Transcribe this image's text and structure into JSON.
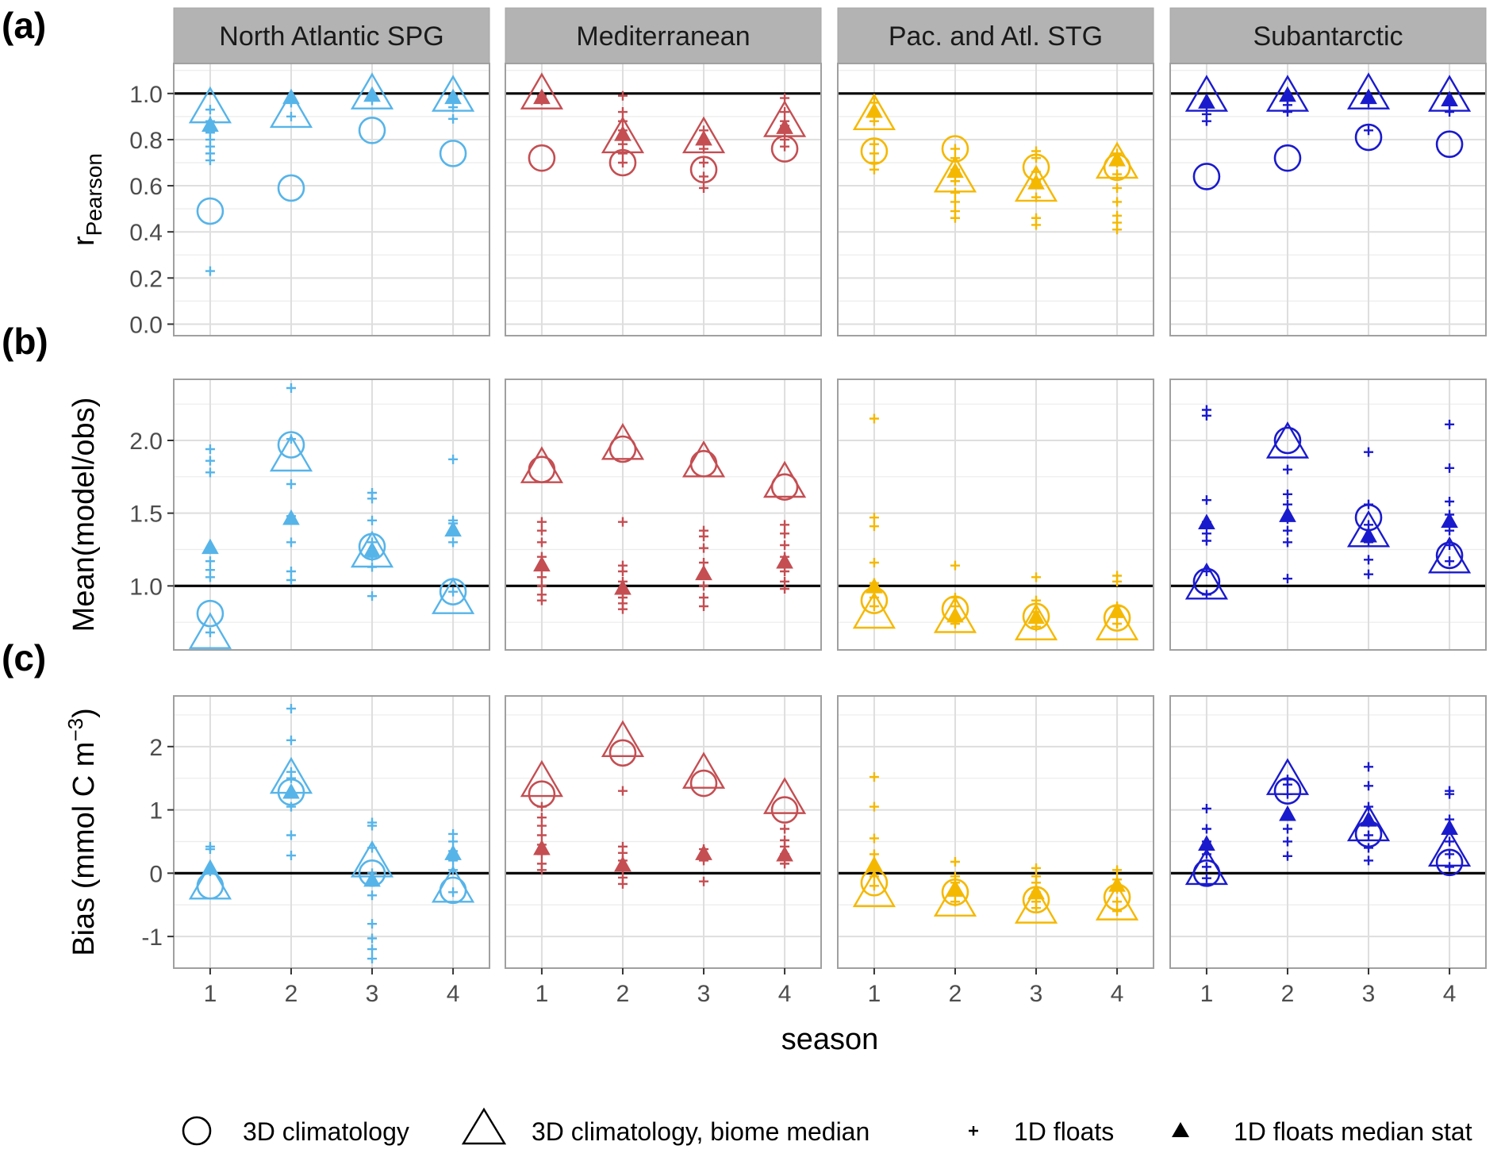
{
  "chart_data": {
    "type": "scatter",
    "xlabel": "season",
    "x": [
      1,
      2,
      3,
      4
    ],
    "xticks": [
      "1",
      "2",
      "3",
      "4"
    ],
    "panels": [
      {
        "id": "a",
        "tag": "(a)",
        "ylabel": "r",
        "ylabel_sub": "Pearson",
        "ylim": [
          -0.05,
          1.13
        ],
        "yticks": [
          0,
          0.2,
          0.4,
          0.6,
          0.8,
          1.0
        ],
        "ytick_labels": [
          "0.0",
          "0.2",
          "0.4",
          "0.6",
          "0.8",
          "1.0"
        ],
        "hline": 1.0
      },
      {
        "id": "b",
        "tag": "(b)",
        "ylabel": "Mean(model/obs)",
        "ylim": [
          0.56,
          2.42
        ],
        "yticks": [
          1.0,
          1.5,
          2.0
        ],
        "ytick_labels": [
          "1.0",
          "1.5",
          "2.0"
        ],
        "hline": 1.0
      },
      {
        "id": "c",
        "tag": "(c)",
        "ylabel": "Bias (mmol C m",
        "ylabel_sup": "−3",
        "ylabel_end": ")",
        "ylim": [
          -1.5,
          2.8
        ],
        "yticks": [
          -1,
          0,
          1,
          2
        ],
        "ytick_labels": [
          "-1",
          "0",
          "1",
          "2"
        ],
        "hline": 0
      }
    ],
    "biomes": [
      {
        "name": "North Atlantic SPG",
        "color": "#56b4e9",
        "a": {
          "climatology": [
            0.49,
            0.59,
            0.84,
            0.74
          ],
          "biome_median": [
            0.93,
            0.91,
            0.99,
            0.98
          ],
          "float_median": [
            0.86,
            0.98,
            0.99,
            0.98
          ],
          "floats": [
            [
              0.23,
              0.71,
              0.74,
              0.77,
              0.8,
              0.83,
              0.88,
              0.93
            ],
            [
              0.9,
              0.96,
              0.98
            ],
            [
              0.97,
              0.99
            ],
            [
              0.89,
              0.94,
              0.99
            ]
          ]
        },
        "b": {
          "climatology": [
            0.81,
            1.97,
            1.27,
            0.96
          ],
          "biome_median": [
            0.66,
            1.88,
            1.22,
            0.9
          ],
          "float_median": [
            1.26,
            1.46,
            1.24,
            1.38
          ],
          "floats": [
            [
              0.68,
              1.06,
              1.11,
              1.17,
              1.78,
              1.86,
              1.94
            ],
            [
              1.04,
              1.1,
              1.3,
              1.48,
              1.7,
              2.01,
              2.36
            ],
            [
              0.93,
              1.13,
              1.2,
              1.3,
              1.45,
              1.6,
              1.64
            ],
            [
              0.96,
              1.3,
              1.38,
              1.43,
              1.45,
              1.87
            ]
          ]
        },
        "c": {
          "climatology": [
            -0.2,
            1.28,
            0.0,
            -0.27
          ],
          "biome_median": [
            -0.2,
            1.47,
            0.15,
            -0.25
          ],
          "float_median": [
            0.07,
            1.27,
            -0.12,
            0.3
          ],
          "floats": [
            [
              0.03,
              0.38,
              0.42
            ],
            [
              0.28,
              0.6,
              1.05,
              1.5,
              1.6,
              2.1,
              2.6
            ],
            [
              -1.35,
              -1.2,
              -1.03,
              -0.8,
              -0.35,
              0.0,
              0.4,
              0.75,
              0.8
            ],
            [
              -0.3,
              0.05,
              0.2,
              0.35,
              0.5,
              0.62
            ]
          ]
        }
      },
      {
        "name": "Mediterranean",
        "color": "#c44e52",
        "a": {
          "climatology": [
            0.72,
            0.7,
            0.67,
            0.76
          ],
          "biome_median": [
            0.99,
            0.8,
            0.8,
            0.87
          ],
          "float_median": [
            0.98,
            0.82,
            0.8,
            0.85
          ],
          "floats": [
            [
              0.97,
              0.99
            ],
            [
              0.7,
              0.74,
              0.78,
              0.84,
              0.88,
              0.92,
              0.99
            ],
            [
              0.59,
              0.64,
              0.7,
              0.76,
              0.8,
              0.84
            ],
            [
              0.77,
              0.8,
              0.83,
              0.86,
              0.88,
              0.92,
              0.98
            ]
          ]
        },
        "b": {
          "climatology": [
            1.8,
            1.94,
            1.84,
            1.68
          ],
          "biome_median": [
            1.8,
            1.96,
            1.84,
            1.7
          ],
          "float_median": [
            1.14,
            0.98,
            1.08,
            1.16
          ],
          "floats": [
            [
              0.9,
              0.94,
              1.0,
              1.06,
              1.12,
              1.2,
              1.3,
              1.38,
              1.44
            ],
            [
              0.84,
              0.88,
              0.92,
              0.96,
              1.03,
              1.1,
              1.14,
              1.44
            ],
            [
              0.86,
              0.92,
              1.0,
              1.08,
              1.16,
              1.26,
              1.34,
              1.38
            ],
            [
              0.98,
              1.03,
              1.1,
              1.2,
              1.28,
              1.36,
              1.42
            ]
          ]
        },
        "c": {
          "climatology": [
            1.25,
            1.9,
            1.42,
            1.0
          ],
          "biome_median": [
            1.42,
            2.05,
            1.55,
            1.15
          ],
          "float_median": [
            0.38,
            0.12,
            0.3,
            0.28
          ],
          "floats": [
            [
              0.05,
              0.15,
              0.3,
              0.45,
              0.6,
              0.75,
              0.88,
              1.05
            ],
            [
              -0.17,
              -0.07,
              0.05,
              0.2,
              0.32,
              0.42,
              1.3
            ],
            [
              -0.13,
              0.2,
              0.25,
              0.38
            ],
            [
              0.15,
              0.3,
              0.42,
              0.52,
              0.7
            ]
          ]
        }
      },
      {
        "name": "Pac. and Atl. STG",
        "color": "#f5b800",
        "a": {
          "climatology": [
            0.75,
            0.76,
            0.68,
            0.68
          ],
          "biome_median": [
            0.9,
            0.63,
            0.59,
            0.69
          ],
          "float_median": [
            0.92,
            0.66,
            0.61,
            0.71
          ],
          "floats": [
            [
              0.67,
              0.7,
              0.74,
              0.78,
              0.88,
              0.92,
              0.96
            ],
            [
              0.46,
              0.49,
              0.53,
              0.57,
              0.62,
              0.67,
              0.72,
              0.76
            ],
            [
              0.43,
              0.46,
              0.55,
              0.62,
              0.66,
              0.72,
              0.75
            ],
            [
              0.41,
              0.44,
              0.47,
              0.53,
              0.59,
              0.65,
              0.7,
              0.74
            ]
          ]
        },
        "b": {
          "climatology": [
            0.9,
            0.84,
            0.79,
            0.78
          ],
          "biome_median": [
            0.8,
            0.77,
            0.72,
            0.72
          ],
          "float_median": [
            0.99,
            0.79,
            0.78,
            0.82
          ],
          "floats": [
            [
              0.86,
              0.92,
              0.98,
              1.02,
              1.16,
              1.41,
              1.47,
              2.15
            ],
            [
              0.74,
              0.78,
              0.86,
              0.92,
              1.14
            ],
            [
              0.72,
              0.76,
              0.82,
              0.9,
              1.06
            ],
            [
              0.74,
              0.8,
              0.86,
              1.03,
              1.07
            ]
          ]
        },
        "c": {
          "climatology": [
            -0.15,
            -0.3,
            -0.42,
            -0.38
          ],
          "biome_median": [
            -0.32,
            -0.47,
            -0.58,
            -0.53
          ],
          "float_median": [
            0.12,
            -0.28,
            -0.32,
            -0.2
          ],
          "floats": [
            [
              -0.2,
              -0.05,
              0.1,
              0.3,
              0.55,
              1.05,
              1.52
            ],
            [
              -0.45,
              -0.3,
              -0.15,
              -0.05,
              0.18
            ],
            [
              -0.55,
              -0.45,
              -0.3,
              -0.15,
              -0.05,
              0.08
            ],
            [
              -0.6,
              -0.45,
              -0.25,
              -0.1,
              0.05
            ]
          ]
        }
      },
      {
        "name": "Subantarctic",
        "color": "#1a1acd",
        "a": {
          "climatology": [
            0.64,
            0.72,
            0.81,
            0.78
          ],
          "biome_median": [
            0.98,
            0.98,
            0.99,
            0.98
          ],
          "float_median": [
            0.96,
            0.99,
            0.98,
            0.97
          ],
          "floats": [
            [
              0.88,
              0.91,
              0.95
            ],
            [
              0.92,
              0.95,
              0.97
            ],
            [
              0.84,
              0.96
            ],
            [
              0.92,
              0.95
            ]
          ]
        },
        "b": {
          "climatology": [
            1.03,
            2.0,
            1.47,
            1.21
          ],
          "biome_median": [
            1.0,
            1.97,
            1.36,
            1.18
          ],
          "float_median": [
            1.43,
            1.48,
            1.34,
            1.44
          ],
          "floats": [
            [
              0.94,
              1.1,
              1.31,
              1.36,
              1.44,
              1.59,
              2.17,
              2.21
            ],
            [
              1.05,
              1.3,
              1.38,
              1.46,
              1.56,
              1.63,
              1.8
            ],
            [
              1.08,
              1.18,
              1.3,
              1.42,
              1.56,
              1.92
            ],
            [
              1.17,
              1.28,
              1.38,
              1.49,
              1.58,
              1.81,
              2.11
            ]
          ]
        },
        "c": {
          "climatology": [
            0.0,
            1.3,
            0.62,
            0.17
          ],
          "biome_median": [
            0.03,
            1.45,
            0.72,
            0.32
          ],
          "float_median": [
            0.45,
            0.92,
            0.83,
            0.7
          ],
          "floats": [
            [
              -0.08,
              0.1,
              0.3,
              0.5,
              0.7,
              1.02
            ],
            [
              0.27,
              0.5,
              0.7,
              0.9,
              1.25,
              1.4,
              1.48
            ],
            [
              0.2,
              0.4,
              0.6,
              0.8,
              1.05,
              1.38,
              1.68
            ],
            [
              0.1,
              0.3,
              0.5,
              0.7,
              0.85,
              1.25,
              1.3
            ]
          ]
        }
      }
    ],
    "legend": {
      "position": "bottom",
      "items": [
        {
          "label": "3D climatology",
          "symbol": "open-circle"
        },
        {
          "label": "3D climatology, biome median",
          "symbol": "open-triangle"
        },
        {
          "label": "1D floats",
          "symbol": "plus"
        },
        {
          "label": "1D floats median stat",
          "symbol": "filled-triangle"
        }
      ]
    }
  }
}
